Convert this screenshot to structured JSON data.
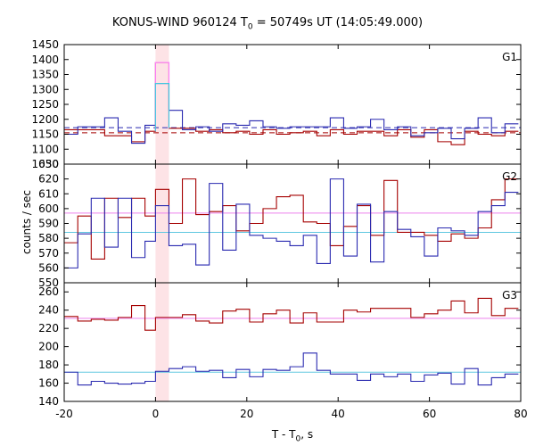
{
  "chart_data": {
    "type": "line",
    "title": "KONUS-WIND 960124 T",
    "title_sub": "0",
    "title_rest": " = 50749s UT (14:05:49.000)",
    "xlabel": "T - T",
    "xlabel_sub": "0",
    "xlabel_rest": ", s",
    "ylabel": "counts / sec",
    "xlim": [
      -20,
      80
    ],
    "x_ticks": [
      -20,
      0,
      20,
      40,
      60,
      80
    ],
    "highlight_interval": [
      0,
      2.944
    ],
    "bin_edges": [
      -19.968,
      -17.024,
      -14.08,
      -11.136,
      -8.192,
      -5.248,
      -2.304,
      0.0,
      2.944,
      5.888,
      8.832,
      11.776,
      14.72,
      17.664,
      20.608,
      23.552,
      26.496,
      29.44,
      32.384,
      35.328,
      38.272,
      41.216,
      44.16,
      47.104,
      50.048,
      52.992,
      55.936,
      58.88,
      61.824,
      64.768,
      67.712,
      70.656,
      73.6,
      76.544,
      79.488
    ],
    "panels": [
      {
        "label": "G1",
        "ylim": [
          1050,
          1450
        ],
        "y_ticks": [
          1050,
          1100,
          1150,
          1200,
          1250,
          1300,
          1350,
          1400,
          1450
        ],
        "series": [
          {
            "color": "#a50000",
            "values": [
              1165,
              1165,
              1165,
              1145,
              1145,
              1125,
              1160,
              1390,
              1170,
              1170,
              1160,
              1165,
              1155,
              1160,
              1150,
              1165,
              1150,
              1155,
              1160,
              1145,
              1165,
              1150,
              1160,
              1160,
              1145,
              1165,
              1140,
              1165,
              1125,
              1115,
              1160,
              1150,
              1145,
              1160
            ]
          },
          {
            "color": "#2a2ab0",
            "values": [
              1150,
              1175,
              1175,
              1205,
              1160,
              1120,
              1180,
              1320,
              1230,
              1165,
              1175,
              1160,
              1185,
              1180,
              1195,
              1175,
              1170,
              1175,
              1175,
              1175,
              1205,
              1170,
              1175,
              1200,
              1165,
              1175,
              1145,
              1155,
              1170,
              1135,
              1170,
              1205,
              1155,
              1185
            ]
          },
          {
            "color": "#ff80ff",
            "values": [
              1390
            ]
          },
          {
            "color": "#40c8e0",
            "values": [
              1320
            ]
          }
        ],
        "background_levels": [
          {
            "color": "#a50000",
            "value": 1155,
            "style": "dashed"
          },
          {
            "color": "#2a2ab0",
            "value": 1172,
            "style": "dashed"
          }
        ]
      },
      {
        "label": "G2",
        "ylim": [
          550,
          630
        ],
        "y_ticks": [
          550,
          560,
          570,
          580,
          590,
          600,
          610,
          620,
          630
        ],
        "series": [
          {
            "color": "#a50000",
            "values": [
              577,
              595,
              566,
              607,
              594,
              607,
              595,
              613,
              590,
              620,
              596,
              598,
              602,
              585,
              590,
              600,
              608,
              609,
              591,
              590,
              575,
              588,
              602,
              582,
              619,
              584,
              584,
              582,
              578,
              583,
              580,
              587,
              606,
              620
            ]
          },
          {
            "color": "#2a2ab0",
            "values": [
              560,
              583,
              607,
              574,
              607,
              567,
              578,
              602,
              575,
              576,
              562,
              617,
              572,
              603,
              582,
              580,
              578,
              575,
              582,
              563,
              620,
              568,
              603,
              564,
              598,
              586,
              581,
              568,
              587,
              585,
              582,
              598,
              602,
              611
            ]
          }
        ],
        "background_levels": [
          {
            "color": "#ee82ee",
            "value": 597,
            "style": "solid"
          },
          {
            "color": "#60c8e0",
            "value": 584,
            "style": "solid"
          }
        ]
      },
      {
        "label": "G3",
        "ylim": [
          140,
          270
        ],
        "y_ticks": [
          140,
          160,
          180,
          200,
          220,
          240,
          260
        ],
        "series": [
          {
            "color": "#a50000",
            "values": [
              233,
              228,
              230,
              229,
              232,
              245,
              218,
              232,
              232,
              235,
              228,
              226,
              239,
              241,
              227,
              236,
              240,
              226,
              237,
              227,
              227,
              240,
              238,
              242,
              242,
              242,
              232,
              236,
              240,
              250,
              237,
              253,
              234,
              242
            ]
          },
          {
            "color": "#2a2ab0",
            "values": [
              172,
              158,
              162,
              160,
              159,
              160,
              162,
              173,
              176,
              178,
              173,
              174,
              166,
              175,
              167,
              175,
              174,
              178,
              193,
              174,
              170,
              170,
              163,
              170,
              167,
              170,
              162,
              169,
              171,
              159,
              176,
              158,
              166,
              170
            ]
          }
        ],
        "background_levels": [
          {
            "color": "#ee82ee",
            "value": 231,
            "style": "solid"
          },
          {
            "color": "#60c8e0",
            "value": 172,
            "style": "solid"
          }
        ]
      }
    ]
  }
}
